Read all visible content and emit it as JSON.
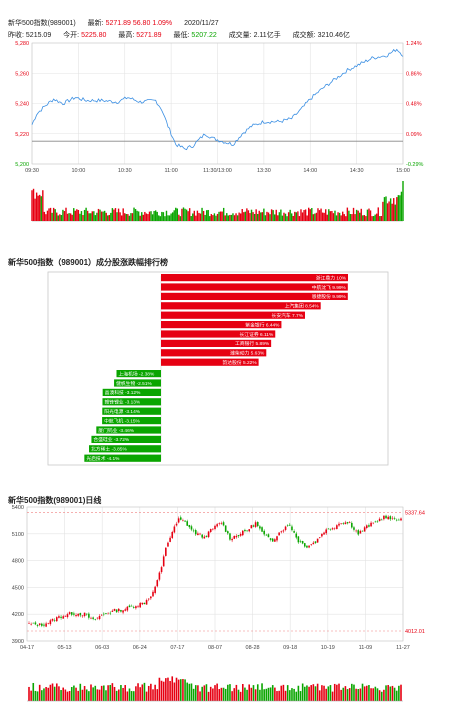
{
  "header": {
    "name": "新华500指数(989001)",
    "latest_label": "最新:",
    "latest": "5271.89",
    "change": "56.80",
    "pct": "1.09%",
    "date": "2020/11/27",
    "prev_close_label": "昨收:",
    "prev_close": "5215.09",
    "open_label": "今开:",
    "open": "5225.80",
    "high_label": "最高:",
    "high": "5271.89",
    "low_label": "最低:",
    "low": "5207.22",
    "vol_label": "成交量:",
    "vol": "2.11亿手",
    "amount_label": "成交额:",
    "amount": "3210.46亿"
  },
  "colors": {
    "up": "#e60012",
    "down": "#0aa500",
    "line": "#3b8fe3",
    "grid": "#e3e3e3",
    "bar_border": "#555555"
  },
  "chart_data": [
    {
      "type": "line",
      "name": "intraday",
      "x_ticks": [
        "09:30",
        "10:00",
        "10:30",
        "11:00",
        "11:30/13:00",
        "13:30",
        "14:00",
        "14:30",
        "15:00"
      ],
      "y_ticks": [
        "5,280",
        "5,260",
        "5,240",
        "5,220",
        "5,200"
      ],
      "y_ticks_right": [
        "1.24%",
        "0.86%",
        "0.48%",
        "0.09%",
        "-0.29%"
      ],
      "ylim": [
        5200,
        5280
      ],
      "prev_close": 5215.09,
      "price_anchors": [
        [
          0,
          5226
        ],
        [
          3,
          5233
        ],
        [
          8,
          5238
        ],
        [
          14,
          5243
        ],
        [
          20,
          5240
        ],
        [
          28,
          5244
        ],
        [
          35,
          5242
        ],
        [
          45,
          5242
        ],
        [
          55,
          5241
        ],
        [
          62,
          5244
        ],
        [
          70,
          5241
        ],
        [
          80,
          5242
        ],
        [
          84,
          5236
        ],
        [
          88,
          5225
        ],
        [
          93,
          5213
        ],
        [
          99,
          5210
        ],
        [
          104,
          5212
        ],
        [
          112,
          5220
        ],
        [
          117,
          5217
        ],
        [
          123,
          5215
        ],
        [
          130,
          5213
        ],
        [
          136,
          5220
        ],
        [
          142,
          5225
        ],
        [
          150,
          5228
        ],
        [
          160,
          5228
        ],
        [
          168,
          5230
        ],
        [
          174,
          5236
        ],
        [
          180,
          5243
        ],
        [
          188,
          5250
        ],
        [
          196,
          5256
        ],
        [
          204,
          5262
        ],
        [
          212,
          5266
        ],
        [
          220,
          5270
        ],
        [
          225,
          5271
        ],
        [
          230,
          5272
        ],
        [
          236,
          5276
        ],
        [
          240,
          5272
        ]
      ],
      "volume_seed": 7
    },
    {
      "type": "bar",
      "name": "constituent-ranking",
      "title": "新华500指数（989001）成分股涨跌幅排行榜",
      "gainers": [
        {
          "label": "浙江鼎力 10%",
          "value": 10.0
        },
        {
          "label": "中航沈飞 9.99%",
          "value": 9.99
        },
        {
          "label": "恩捷股份 9.99%",
          "value": 9.99
        },
        {
          "label": "上汽集团 8.54%",
          "value": 8.54
        },
        {
          "label": "长安汽车 7.7%",
          "value": 7.7
        },
        {
          "label": "紫金银行 6.44%",
          "value": 6.44
        },
        {
          "label": "长江证券 6.11%",
          "value": 6.11
        },
        {
          "label": "工商银行 5.89%",
          "value": 5.89
        },
        {
          "label": "潍柴动力 5.63%",
          "value": 5.63
        },
        {
          "label": "韵达股份 5.22%",
          "value": 5.22
        }
      ],
      "losers": [
        {
          "label": "上海机场 -2.38%",
          "value": -2.38
        },
        {
          "label": "健帆生物 -2.51%",
          "value": -2.51
        },
        {
          "label": "晶澳科技 -3.12%",
          "value": -3.12
        },
        {
          "label": "赣锋锂业 -3.13%",
          "value": -3.13
        },
        {
          "label": "阳光电源 -3.14%",
          "value": -3.14
        },
        {
          "label": "中航飞机 -3.15%",
          "value": -3.15
        },
        {
          "label": "厦门钨业 -3.46%",
          "value": -3.46
        },
        {
          "label": "合盛硅业 -3.72%",
          "value": -3.72
        },
        {
          "label": "北方稀土 -3.85%",
          "value": -3.85
        },
        {
          "label": "光启技术 -4.1%",
          "value": -4.1
        }
      ]
    },
    {
      "type": "candlestick",
      "name": "daily-kline",
      "title": "新华500指数(989001)日线",
      "x_ticks": [
        "04-17",
        "05-13",
        "06-03",
        "06-24",
        "07-17",
        "08-07",
        "08-28",
        "09-18",
        "10-19",
        "11-09",
        "11-27"
      ],
      "y_ticks": [
        "5400",
        "5100",
        "4800",
        "4500",
        "4200",
        "3900"
      ],
      "ylim": [
        3900,
        5400
      ],
      "max_label": "5337.64",
      "min_label": "4012.01",
      "close_anchors": [
        [
          0,
          4090
        ],
        [
          6,
          4080
        ],
        [
          10,
          4120
        ],
        [
          14,
          4170
        ],
        [
          20,
          4210
        ],
        [
          26,
          4200
        ],
        [
          30,
          4130
        ],
        [
          34,
          4190
        ],
        [
          40,
          4240
        ],
        [
          44,
          4250
        ],
        [
          50,
          4300
        ],
        [
          54,
          4330
        ],
        [
          58,
          4440
        ],
        [
          62,
          4720
        ],
        [
          64,
          4950
        ],
        [
          67,
          5120
        ],
        [
          70,
          5260
        ],
        [
          73,
          5230
        ],
        [
          77,
          5120
        ],
        [
          82,
          5060
        ],
        [
          86,
          5160
        ],
        [
          90,
          5230
        ],
        [
          94,
          5050
        ],
        [
          98,
          5090
        ],
        [
          102,
          5140
        ],
        [
          106,
          5220
        ],
        [
          110,
          5080
        ],
        [
          114,
          5030
        ],
        [
          118,
          5140
        ],
        [
          122,
          5200
        ],
        [
          126,
          5020
        ],
        [
          130,
          4960
        ],
        [
          134,
          5010
        ],
        [
          138,
          5130
        ],
        [
          142,
          5170
        ],
        [
          146,
          5230
        ],
        [
          150,
          5220
        ],
        [
          154,
          5100
        ],
        [
          158,
          5180
        ],
        [
          162,
          5230
        ],
        [
          166,
          5290
        ],
        [
          170,
          5260
        ],
        [
          174,
          5272
        ]
      ]
    }
  ]
}
